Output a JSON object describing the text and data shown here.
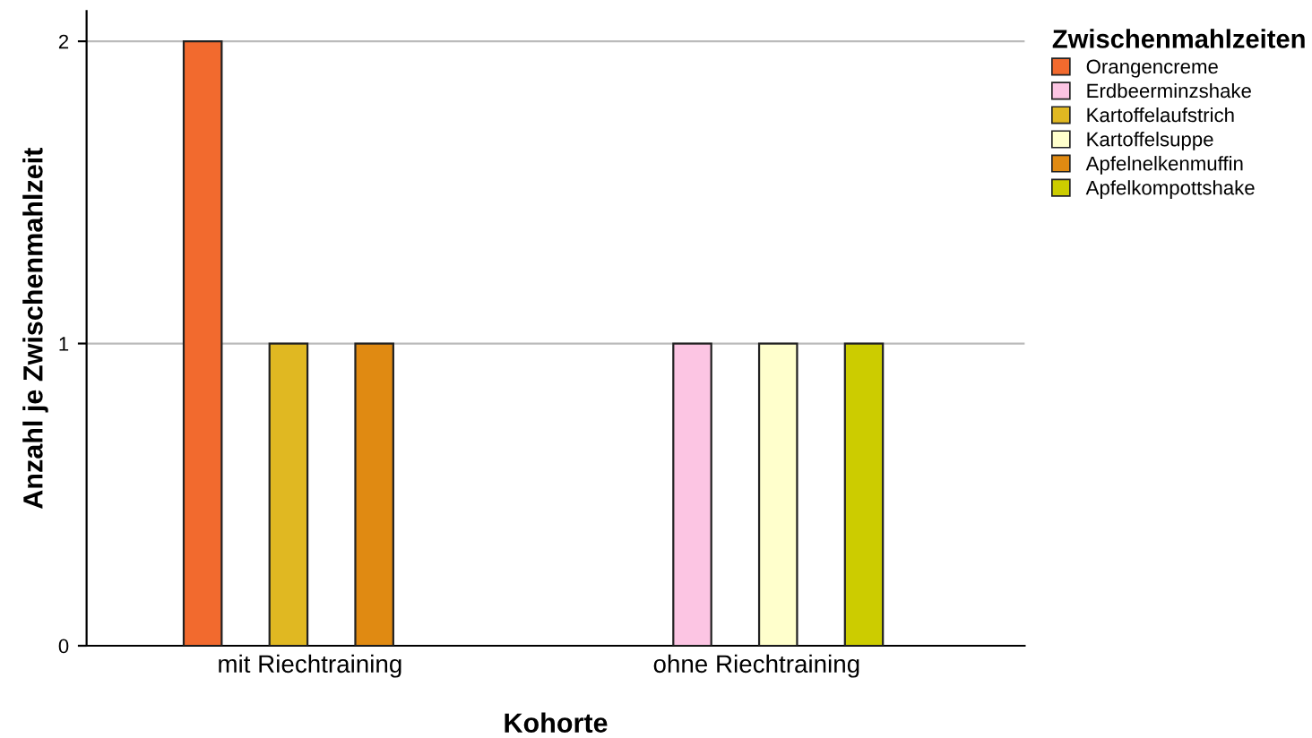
{
  "chart_data": {
    "type": "bar",
    "xlabel": "Kohorte",
    "ylabel": "Anzahl je Zwischenmahlzeit",
    "legend_title": "Zwischenmahlzeiten",
    "categories": [
      "mit Riechtraining",
      "ohne Riechtraining"
    ],
    "series": [
      {
        "name": "Orangencreme",
        "color": "#f26a2e",
        "values": [
          2,
          null
        ]
      },
      {
        "name": "Erdbeerminzshake",
        "color": "#fcc5e3",
        "values": [
          null,
          1
        ]
      },
      {
        "name": "Kartoffelaufstrich",
        "color": "#e0b822",
        "values": [
          1,
          null
        ]
      },
      {
        "name": "Kartoffelsuppe",
        "color": "#ffffcc",
        "values": [
          null,
          1
        ]
      },
      {
        "name": "Apfelnelkenmuffin",
        "color": "#e08a12",
        "values": [
          1,
          null
        ]
      },
      {
        "name": "Apfelkompottshake",
        "color": "#cccc00",
        "values": [
          null,
          1
        ]
      }
    ],
    "ylim": [
      0,
      2.1
    ],
    "yticks": [
      0,
      1,
      2
    ],
    "grid": "y",
    "legend": "right"
  }
}
